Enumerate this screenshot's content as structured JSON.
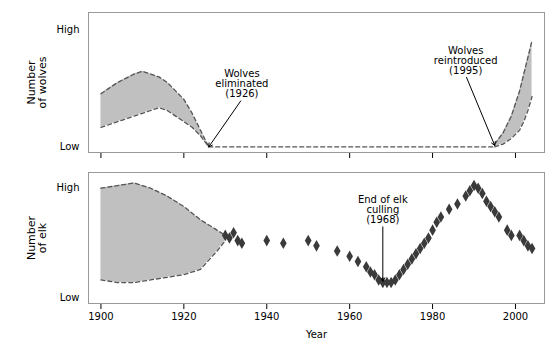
{
  "chart_data": [
    {
      "type": "area",
      "ylabel": "Number\nof wolves",
      "xlim": [
        1897,
        2007
      ],
      "ylim": [
        0.0,
        1.0
      ],
      "xticks": [
        1900,
        1920,
        1940,
        1960,
        1980,
        2000
      ],
      "yticks": [
        {
          "value": 0.04,
          "label": "Low"
        },
        {
          "value": 0.88,
          "label": "High"
        }
      ],
      "tick_labels": "y",
      "series": [
        {
          "type": "area",
          "color": "#c0c0c0",
          "x": [
            1900,
            1902,
            1904,
            1906,
            1908,
            1910,
            1912,
            1914,
            1916,
            1918,
            1920,
            1922,
            1924,
            1926
          ],
          "upper": [
            0.42,
            0.46,
            0.5,
            0.53,
            0.56,
            0.58,
            0.56,
            0.54,
            0.5,
            0.44,
            0.38,
            0.28,
            0.16,
            0.04
          ],
          "lower": [
            0.18,
            0.2,
            0.22,
            0.24,
            0.26,
            0.28,
            0.3,
            0.32,
            0.3,
            0.26,
            0.22,
            0.18,
            0.12,
            0.04
          ]
        },
        {
          "type": "line",
          "color": "#555555",
          "line_style": "dashed",
          "x": [
            1900,
            1902,
            1904,
            1906,
            1908,
            1910,
            1912,
            1914,
            1916,
            1918,
            1920,
            1922,
            1924,
            1926
          ],
          "values": [
            0.42,
            0.46,
            0.5,
            0.53,
            0.56,
            0.58,
            0.56,
            0.54,
            0.5,
            0.44,
            0.38,
            0.28,
            0.16,
            0.04
          ]
        },
        {
          "type": "line",
          "color": "#555555",
          "line_style": "dashed",
          "x": [
            1900,
            1902,
            1904,
            1906,
            1908,
            1910,
            1912,
            1914,
            1916,
            1918,
            1920,
            1922,
            1924,
            1926
          ],
          "values": [
            0.18,
            0.2,
            0.22,
            0.24,
            0.26,
            0.28,
            0.3,
            0.32,
            0.3,
            0.26,
            0.22,
            0.18,
            0.12,
            0.04
          ]
        },
        {
          "type": "line",
          "color": "#555555",
          "line_style": "dashed",
          "x": [
            1926,
            1930,
            1940,
            1950,
            1960,
            1970,
            1980,
            1990,
            1995
          ],
          "values": [
            0.04,
            0.04,
            0.04,
            0.04,
            0.04,
            0.04,
            0.04,
            0.04,
            0.04
          ]
        },
        {
          "type": "area",
          "color": "#c0c0c0",
          "x": [
            1995,
            1997,
            1999,
            2001,
            2002,
            2003,
            2004
          ],
          "upper": [
            0.06,
            0.14,
            0.26,
            0.44,
            0.56,
            0.68,
            0.8
          ],
          "lower": [
            0.04,
            0.06,
            0.1,
            0.16,
            0.22,
            0.3,
            0.4
          ]
        },
        {
          "type": "line",
          "color": "#555555",
          "line_style": "dashed",
          "x": [
            1995,
            1997,
            1999,
            2001,
            2002,
            2003,
            2004
          ],
          "values": [
            0.06,
            0.14,
            0.26,
            0.44,
            0.56,
            0.68,
            0.8
          ]
        },
        {
          "type": "line",
          "color": "#555555",
          "line_style": "dashed",
          "x": [
            1995,
            1997,
            1999,
            2001,
            2002,
            2003,
            2004
          ],
          "values": [
            0.04,
            0.06,
            0.1,
            0.16,
            0.22,
            0.3,
            0.4
          ]
        }
      ],
      "annotations": [
        {
          "text": "Wolves\neliminated\n(1926)",
          "x": 1926,
          "y": 0.04,
          "text_x": 1934,
          "text_y": 0.38
        },
        {
          "text": "Wolves\nreintroduced\n(1995)",
          "x": 1995,
          "y": 0.05,
          "text_x": 1988,
          "text_y": 0.55
        }
      ]
    },
    {
      "type": "area",
      "ylabel": "Number\nof elk",
      "xlabel": "Year",
      "xlim": [
        1897,
        2007
      ],
      "ylim": [
        0.0,
        1.0
      ],
      "xticks": [
        1900,
        1920,
        1940,
        1960,
        1980,
        2000
      ],
      "yticks": [
        {
          "value": 0.04,
          "label": "Low"
        },
        {
          "value": 0.88,
          "label": "High"
        }
      ],
      "series": [
        {
          "type": "area",
          "color": "#c0c0c0",
          "x": [
            1900,
            1904,
            1908,
            1912,
            1916,
            1920,
            1924,
            1928,
            1930
          ],
          "upper": [
            0.88,
            0.9,
            0.92,
            0.88,
            0.82,
            0.74,
            0.64,
            0.56,
            0.52
          ],
          "lower": [
            0.18,
            0.16,
            0.16,
            0.18,
            0.2,
            0.22,
            0.26,
            0.4,
            0.48
          ]
        },
        {
          "type": "line",
          "color": "#555555",
          "line_style": "dashed",
          "x": [
            1900,
            1904,
            1908,
            1912,
            1916,
            1920,
            1924,
            1928,
            1930
          ],
          "values": [
            0.88,
            0.9,
            0.92,
            0.88,
            0.82,
            0.74,
            0.64,
            0.56,
            0.52
          ]
        },
        {
          "type": "line",
          "color": "#555555",
          "line_style": "dashed",
          "x": [
            1900,
            1904,
            1908,
            1912,
            1916,
            1920,
            1924,
            1928,
            1930
          ],
          "values": [
            0.18,
            0.16,
            0.16,
            0.18,
            0.2,
            0.22,
            0.26,
            0.4,
            0.48
          ]
        },
        {
          "type": "scatter",
          "color": "#3a3a3a",
          "marker": "diamond",
          "x": [
            1930,
            1931,
            1932,
            1933,
            1934,
            1940,
            1944,
            1950,
            1952,
            1957,
            1960,
            1962,
            1964,
            1965,
            1966,
            1967,
            1968,
            1969,
            1970,
            1971,
            1972,
            1973,
            1974,
            1975,
            1976,
            1977,
            1978,
            1979,
            1980,
            1981,
            1982,
            1984,
            1986,
            1988,
            1989,
            1990,
            1991,
            1992,
            1993,
            1994,
            1995,
            1996,
            1998,
            1999,
            2001,
            2002,
            2003,
            2004
          ],
          "values": [
            0.52,
            0.5,
            0.54,
            0.48,
            0.46,
            0.48,
            0.46,
            0.48,
            0.44,
            0.4,
            0.36,
            0.32,
            0.28,
            0.24,
            0.22,
            0.18,
            0.16,
            0.16,
            0.16,
            0.18,
            0.22,
            0.26,
            0.3,
            0.34,
            0.38,
            0.42,
            0.46,
            0.5,
            0.56,
            0.62,
            0.66,
            0.72,
            0.76,
            0.82,
            0.86,
            0.9,
            0.88,
            0.84,
            0.78,
            0.74,
            0.7,
            0.66,
            0.56,
            0.52,
            0.52,
            0.48,
            0.44,
            0.42
          ]
        }
      ],
      "annotations": [
        {
          "text": "End of elk\nculling\n(1968)",
          "x": 1968,
          "y": 0.17,
          "text_x": 1968,
          "text_y": 0.6
        }
      ]
    }
  ]
}
